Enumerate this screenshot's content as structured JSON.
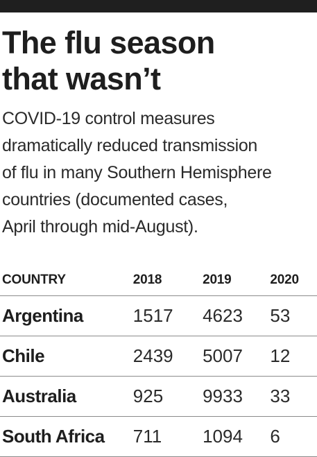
{
  "headline": {
    "line1": "The flu season",
    "line2": "that wasn’t"
  },
  "dek": {
    "lines": [
      "COVID-19 control measures",
      "dramatically reduced transmission",
      "of flu in many Southern Hemisphere",
      "countries (documented cases,",
      "April through mid-August)."
    ]
  },
  "table": {
    "headers": [
      "COUNTRY",
      "2018",
      "2019",
      "2020"
    ],
    "rows": [
      {
        "country": "Argentina",
        "y2018": "1517",
        "y2019": "4623",
        "y2020": "53"
      },
      {
        "country": "Chile",
        "y2018": "2439",
        "y2019": "5007",
        "y2020": "12"
      },
      {
        "country": "Australia",
        "y2018": "925",
        "y2019": "9933",
        "y2020": "33"
      },
      {
        "country": "South Africa",
        "y2018": "711",
        "y2019": "1094",
        "y2020": "6"
      }
    ]
  },
  "colors": {
    "top_bar": "#1f1f1f",
    "text": "#1e1e1e",
    "rule": "#8a8a8a"
  }
}
